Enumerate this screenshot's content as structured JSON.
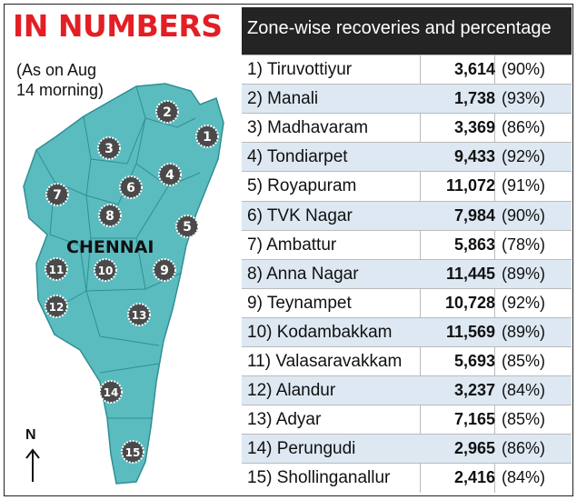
{
  "title": "IN NUMBERS",
  "table_header": "Zone-wise recoveries and percentage",
  "date_note": "(As on Aug\n14 morning)",
  "map_label": "CHENNAI",
  "north_label": "N",
  "colors": {
    "title_red": "#e31e24",
    "map_teal": "#5bbcc0",
    "header_dark": "#242424",
    "row_shade": "#dde8f2"
  },
  "map_zone_numbers": [
    "1",
    "2",
    "3",
    "4",
    "5",
    "6",
    "7",
    "8",
    "9",
    "10",
    "11",
    "12",
    "13",
    "14",
    "15"
  ],
  "zones": [
    {
      "label": "1) Tiruvottiyur",
      "recoveries": "3,614",
      "percentage": "(90%)"
    },
    {
      "label": "2) Manali",
      "recoveries": "1,738",
      "percentage": "(93%)"
    },
    {
      "label": "3) Madhavaram",
      "recoveries": "3,369",
      "percentage": "(86%)"
    },
    {
      "label": "4) Tondiarpet",
      "recoveries": "9,433",
      "percentage": "(92%)"
    },
    {
      "label": "5) Royapuram",
      "recoveries": "11,072",
      "percentage": "(91%)"
    },
    {
      "label": "6) TVK Nagar",
      "recoveries": "7,984",
      "percentage": "(90%)"
    },
    {
      "label": "7) Ambattur",
      "recoveries": "5,863",
      "percentage": "(78%)"
    },
    {
      "label": "8) Anna Nagar",
      "recoveries": "11,445",
      "percentage": "(89%)"
    },
    {
      "label": "9) Teynampet",
      "recoveries": "10,728",
      "percentage": "(92%)"
    },
    {
      "label": "10) Kodambakkam",
      "recoveries": "11,569",
      "percentage": "(89%)"
    },
    {
      "label": "11) Valasaravakkam",
      "recoveries": "5,693",
      "percentage": "(85%)"
    },
    {
      "label": "12) Alandur",
      "recoveries": "3,237",
      "percentage": "(84%)"
    },
    {
      "label": "13) Adyar",
      "recoveries": "7,165",
      "percentage": "(85%)"
    },
    {
      "label": "14) Perungudi",
      "recoveries": "2,965",
      "percentage": "(86%)"
    },
    {
      "label": "15) Shollinganallur",
      "recoveries": "2,416",
      "percentage": "(84%)"
    }
  ]
}
